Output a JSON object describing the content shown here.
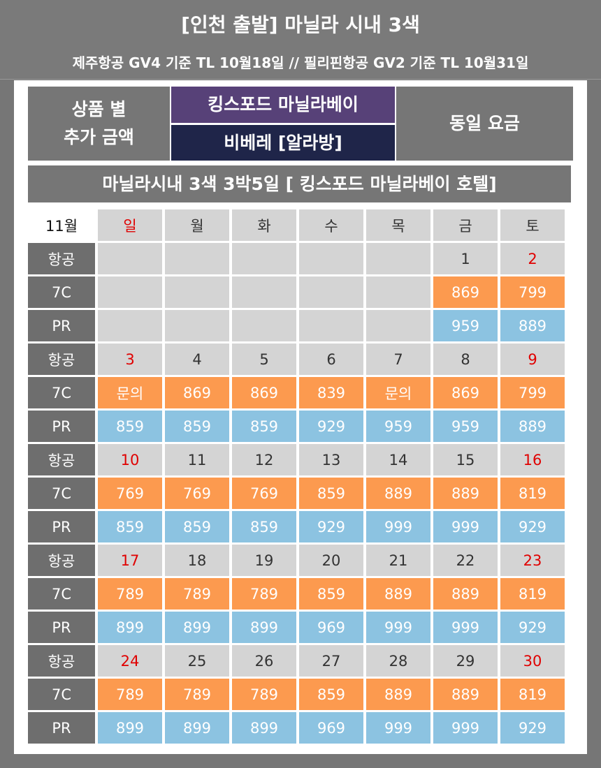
{
  "header": {
    "title": "[인천 출발] 마닐라 시내 3색",
    "subtitle": "제주항공 GV4 기준 TL 10월18일 // 필리핀항공 GV2 기준 TL 10월31일"
  },
  "info": {
    "label_line1": "상품 별",
    "label_line2": "추가 금액",
    "hotel1": "킹스포드 마닐라베이",
    "hotel2": "비베레 [알라방]",
    "same_price": "동일 요금",
    "hotel1_color": "#574178",
    "hotel2_color": "#1f2549"
  },
  "banner": "마닐라시내 3색 3박5일 [ 킹스포드 마닐라베이 호텔]",
  "calendar": {
    "month": "11월",
    "weekdays": [
      "일",
      "월",
      "화",
      "수",
      "목",
      "금",
      "토"
    ],
    "labels": {
      "day": "항공",
      "c7": "7C",
      "pr": "PR"
    },
    "colors": {
      "c7": "#fc9a4f",
      "pr": "#8cc3e1",
      "sunday_saturday_text": "#e00000"
    },
    "weeks": [
      {
        "days": [
          "",
          "",
          "",
          "",
          "",
          "1",
          "2"
        ],
        "c7": [
          "",
          "",
          "",
          "",
          "",
          "869",
          "799"
        ],
        "pr": [
          "",
          "",
          "",
          "",
          "",
          "959",
          "889"
        ]
      },
      {
        "days": [
          "3",
          "4",
          "5",
          "6",
          "7",
          "8",
          "9"
        ],
        "c7": [
          "문의",
          "869",
          "869",
          "839",
          "문의",
          "869",
          "799"
        ],
        "pr": [
          "859",
          "859",
          "859",
          "929",
          "959",
          "959",
          "889"
        ]
      },
      {
        "days": [
          "10",
          "11",
          "12",
          "13",
          "14",
          "15",
          "16"
        ],
        "c7": [
          "769",
          "769",
          "769",
          "859",
          "889",
          "889",
          "819"
        ],
        "pr": [
          "859",
          "859",
          "859",
          "929",
          "999",
          "999",
          "929"
        ]
      },
      {
        "days": [
          "17",
          "18",
          "19",
          "20",
          "21",
          "22",
          "23"
        ],
        "c7": [
          "789",
          "789",
          "789",
          "859",
          "889",
          "889",
          "819"
        ],
        "pr": [
          "899",
          "899",
          "899",
          "969",
          "999",
          "999",
          "929"
        ]
      },
      {
        "days": [
          "24",
          "25",
          "26",
          "27",
          "28",
          "29",
          "30"
        ],
        "c7": [
          "789",
          "789",
          "789",
          "859",
          "889",
          "889",
          "819"
        ],
        "pr": [
          "899",
          "899",
          "899",
          "969",
          "999",
          "999",
          "929"
        ]
      }
    ]
  }
}
